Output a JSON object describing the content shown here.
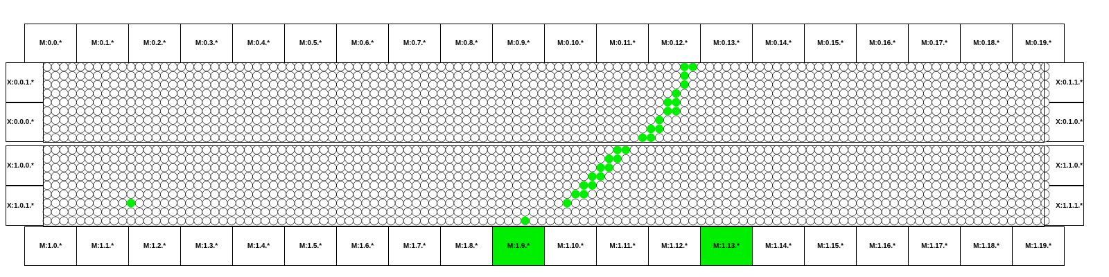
{
  "top_row": [
    "M:0.0.*",
    "M:0.1.*",
    "M:0.2.*",
    "M:0.3.*",
    "M:0.4.*",
    "M:0.5.*",
    "M:0.6.*",
    "M:0.7.*",
    "M:0.8.*",
    "M:0.9.*",
    "M:0.10.*",
    "M:0.11.*",
    "M:0.12.*",
    "M:0.13.*",
    "M:0.14.*",
    "M:0.15.*",
    "M:0.16.*",
    "M:0.17.*",
    "M:0.18.*",
    "M:0.19.*"
  ],
  "bottom_row": [
    "M:1.0.*",
    "M:1.1.*",
    "M:1.2.*",
    "M:1.3.*",
    "M:1.4.*",
    "M:1.5.*",
    "M:1.6.*",
    "M:1.7.*",
    "M:1.8.*",
    "M:1.9.*",
    "M:1.10.*",
    "M:1.11.*",
    "M:1.12.*",
    "M:1.13.*",
    "M:1.14.*",
    "M:1.15.*",
    "M:1.16.*",
    "M:1.17.*",
    "M:1.18.*",
    "M:1.19.*"
  ],
  "bottom_highlighted": [
    "M:1.9.*",
    "M:1.13.*"
  ],
  "left_labels": [
    "X:0.0.1.*",
    "X:0.0.0.*",
    "X:1.0.0.*",
    "X:1.0.1.*"
  ],
  "right_labels": [
    "X:0.1.1.*",
    "X:0.1.0.*",
    "X:1.1.0.*",
    "X:1.1.1.*"
  ],
  "grid": {
    "columns": 120,
    "rows_per_block": 9,
    "blocks": 2,
    "empty_color": "#ffffff",
    "active_color": "#00ee00",
    "active_nodes": [
      [
        0,
        76
      ],
      [
        0,
        77
      ],
      [
        1,
        76
      ],
      [
        2,
        76
      ],
      [
        3,
        75
      ],
      [
        4,
        74
      ],
      [
        4,
        75
      ],
      [
        5,
        74
      ],
      [
        5,
        75
      ],
      [
        6,
        73
      ],
      [
        7,
        72
      ],
      [
        7,
        73
      ],
      [
        8,
        71
      ],
      [
        8,
        72
      ],
      [
        9,
        68
      ],
      [
        9,
        69
      ],
      [
        10,
        67
      ],
      [
        10,
        68
      ],
      [
        11,
        66
      ],
      [
        11,
        67
      ],
      [
        12,
        65
      ],
      [
        12,
        66
      ],
      [
        13,
        64
      ],
      [
        13,
        65
      ],
      [
        14,
        63
      ],
      [
        14,
        64
      ],
      [
        15,
        10
      ],
      [
        15,
        62
      ],
      [
        17,
        57
      ]
    ]
  }
}
